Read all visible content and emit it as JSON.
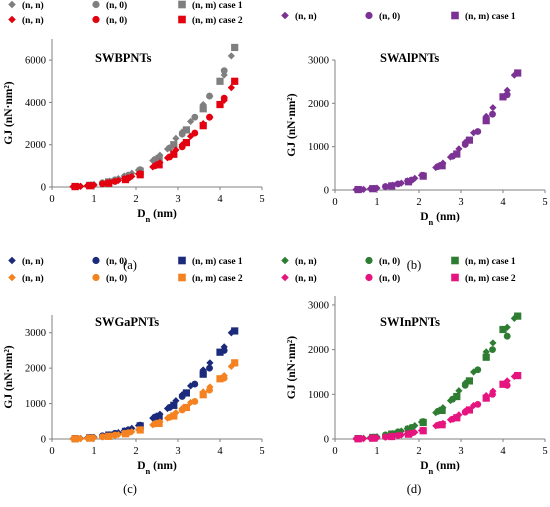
{
  "colors": {
    "gray_light": "#7f7f7f",
    "gray_dark": "#7f7f7f",
    "red": "#e3000f",
    "purple": "#7b3294",
    "navy": "#1b2a7a",
    "orange": "#f58220",
    "green": "#2e7d32",
    "magenta": "#e6147e"
  },
  "chart_data": [
    {
      "type": "scatter",
      "panel": "(a)",
      "title": "SWBPNTs",
      "xlabel_main": "D",
      "xlabel_sub": "n",
      "xlabel_unit": " (nm)",
      "ylabel": "GJ (nN·nm²)",
      "xlim": [
        0,
        5
      ],
      "ylim": [
        0,
        7000
      ],
      "xticks": [
        "0",
        "1",
        "2",
        "3",
        "4",
        "5"
      ],
      "yticks": [
        "0",
        "2000",
        "4000",
        "6000"
      ],
      "grid": false,
      "legend_position": "top",
      "series": [
        {
          "name": "(n, n)",
          "marker": "diamond",
          "color": "#7f7f7f",
          "x": [
            0.5,
            0.68,
            0.84,
            1.0,
            1.2,
            1.37,
            1.58,
            1.72,
            1.9,
            2.06,
            2.4,
            2.57,
            2.75,
            2.95,
            3.1,
            3.3,
            3.6,
            3.76,
            4.1,
            4.27
          ],
          "y": [
            20,
            40,
            70,
            120,
            200,
            280,
            400,
            520,
            650,
            800,
            1250,
            1500,
            1800,
            2300,
            2600,
            3100,
            3900,
            4300,
            5300,
            6200
          ]
        },
        {
          "name": "(n, 0)",
          "marker": "circle",
          "color": "#7f7f7f",
          "x": [
            0.6,
            0.92,
            1.2,
            1.5,
            1.82,
            2.1,
            2.45,
            2.8,
            3.1,
            3.4,
            3.75,
            4.1
          ],
          "y": [
            30,
            90,
            200,
            340,
            560,
            820,
            1300,
            1850,
            2500,
            3300,
            4300,
            5500
          ]
        },
        {
          "name": "(n, m) case 1",
          "marker": "square",
          "color": "#7f7f7f",
          "x": [
            0.55,
            0.9,
            1.35,
            1.75,
            2.1,
            2.55,
            2.9,
            3.2,
            3.6,
            4.0,
            4.35
          ],
          "y": [
            25,
            80,
            240,
            450,
            750,
            1350,
            2000,
            2700,
            3700,
            5000,
            6600
          ]
        },
        {
          "name": "(n, n)",
          "marker": "diamond",
          "color": "#e3000f",
          "x": [
            0.5,
            0.68,
            0.84,
            1.0,
            1.2,
            1.37,
            1.58,
            1.72,
            1.9,
            2.06,
            2.4,
            2.57,
            2.75,
            2.95,
            3.1,
            3.3,
            3.6,
            3.76,
            4.1,
            4.27
          ],
          "y": [
            15,
            30,
            55,
            90,
            150,
            210,
            310,
            400,
            500,
            620,
            950,
            1150,
            1380,
            1750,
            2000,
            2400,
            3000,
            3300,
            4100,
            4700
          ]
        },
        {
          "name": "(n, 0)",
          "marker": "circle",
          "color": "#e3000f",
          "x": [
            0.6,
            0.92,
            1.2,
            1.5,
            1.82,
            2.1,
            2.45,
            2.8,
            3.1,
            3.4,
            3.75,
            4.1
          ],
          "y": [
            25,
            70,
            150,
            260,
            430,
            630,
            1000,
            1420,
            1900,
            2550,
            3300,
            4200
          ]
        },
        {
          "name": "(n, m) case 2",
          "marker": "square",
          "color": "#e3000f",
          "x": [
            0.55,
            0.9,
            1.35,
            1.75,
            2.1,
            2.55,
            2.9,
            3.2,
            3.6,
            4.0,
            4.35
          ],
          "y": [
            20,
            60,
            180,
            350,
            580,
            1050,
            1550,
            2100,
            2900,
            3900,
            5000
          ]
        }
      ]
    },
    {
      "type": "scatter",
      "panel": "(b)",
      "title": "SWAlPNTs",
      "xlabel_main": "D",
      "xlabel_sub": "n",
      "xlabel_unit": " (nm)",
      "ylabel": "GJ (nN·nm²)",
      "xlim": [
        0,
        5
      ],
      "ylim": [
        0,
        3000
      ],
      "xticks": [
        "0",
        "1",
        "2",
        "3",
        "4",
        "5"
      ],
      "yticks": [
        "0",
        "1000",
        "2000",
        "3000"
      ],
      "grid": false,
      "legend_position": "top",
      "series": [
        {
          "name": "(n, n)",
          "marker": "diamond",
          "color": "#7b3294",
          "x": [
            0.5,
            0.68,
            0.84,
            1.0,
            1.2,
            1.37,
            1.58,
            1.72,
            1.9,
            2.06,
            2.4,
            2.57,
            2.75,
            2.95,
            3.1,
            3.3,
            3.6,
            3.76,
            4.1,
            4.27
          ],
          "y": [
            8,
            15,
            28,
            45,
            75,
            110,
            160,
            210,
            270,
            340,
            520,
            620,
            760,
            950,
            1100,
            1320,
            1700,
            1900,
            2300,
            2650
          ]
        },
        {
          "name": "(n, 0)",
          "marker": "circle",
          "color": "#7b3294",
          "x": [
            0.6,
            0.92,
            1.2,
            1.5,
            1.82,
            2.1,
            2.45,
            2.8,
            3.1,
            3.4,
            3.75,
            4.1
          ],
          "y": [
            10,
            35,
            80,
            140,
            230,
            340,
            540,
            780,
            1050,
            1350,
            1750,
            2200
          ]
        },
        {
          "name": "(n, m) case 1",
          "marker": "square",
          "color": "#7b3294",
          "x": [
            0.55,
            0.9,
            1.35,
            1.75,
            2.1,
            2.55,
            2.9,
            3.2,
            3.6,
            4.0,
            4.35
          ],
          "y": [
            10,
            30,
            95,
            190,
            320,
            560,
            830,
            1150,
            1600,
            2150,
            2700
          ]
        }
      ]
    },
    {
      "type": "scatter",
      "panel": "(c)",
      "title": "SWGaPNTs",
      "xlabel_main": "D",
      "xlabel_sub": "n",
      "xlabel_unit": " (nm)",
      "ylabel": "GJ (nN·nm²)",
      "xlim": [
        0,
        5
      ],
      "ylim": [
        0,
        3500
      ],
      "xticks": [
        "0",
        "1",
        "2",
        "3",
        "4",
        "5"
      ],
      "yticks": [
        "0",
        "1000",
        "2000",
        "3000"
      ],
      "grid": false,
      "legend_position": "top",
      "series": [
        {
          "name": "(n, n)",
          "marker": "diamond",
          "color": "#1b2a7a",
          "x": [
            0.5,
            0.68,
            0.84,
            1.0,
            1.2,
            1.37,
            1.58,
            1.72,
            1.9,
            2.06,
            2.4,
            2.57,
            2.75,
            2.95,
            3.1,
            3.3,
            3.6,
            3.76,
            4.1,
            4.27
          ],
          "y": [
            8,
            16,
            30,
            50,
            85,
            120,
            180,
            235,
            300,
            380,
            590,
            700,
            860,
            1080,
            1250,
            1500,
            1950,
            2150,
            2600,
            3000
          ]
        },
        {
          "name": "(n, 0)",
          "marker": "circle",
          "color": "#1b2a7a",
          "x": [
            0.6,
            0.92,
            1.2,
            1.5,
            1.82,
            2.1,
            2.45,
            2.8,
            3.1,
            3.4,
            3.75,
            4.1
          ],
          "y": [
            12,
            40,
            90,
            160,
            260,
            390,
            620,
            890,
            1200,
            1550,
            2000,
            2500
          ]
        },
        {
          "name": "(n, m) case 1",
          "marker": "square",
          "color": "#1b2a7a",
          "x": [
            0.55,
            0.9,
            1.35,
            1.75,
            2.1,
            2.55,
            2.9,
            3.2,
            3.6,
            4.0,
            4.35
          ],
          "y": [
            10,
            35,
            110,
            215,
            370,
            640,
            950,
            1300,
            1830,
            2450,
            3050
          ]
        },
        {
          "name": "(n, n)",
          "marker": "diamond",
          "color": "#f58220",
          "x": [
            0.5,
            0.68,
            0.84,
            1.0,
            1.2,
            1.37,
            1.58,
            1.72,
            1.9,
            2.06,
            2.4,
            2.57,
            2.75,
            2.95,
            3.1,
            3.3,
            3.6,
            3.76,
            4.1,
            4.27
          ],
          "y": [
            5,
            11,
            20,
            35,
            58,
            82,
            125,
            160,
            205,
            260,
            400,
            480,
            590,
            740,
            860,
            1030,
            1330,
            1470,
            1790,
            2050
          ]
        },
        {
          "name": "(n, 0)",
          "marker": "circle",
          "color": "#f58220",
          "x": [
            0.6,
            0.92,
            1.2,
            1.5,
            1.82,
            2.1,
            2.45,
            2.8,
            3.1,
            3.4,
            3.75,
            4.1
          ],
          "y": [
            8,
            28,
            62,
            110,
            180,
            265,
            425,
            610,
            820,
            1060,
            1380,
            1720
          ]
        },
        {
          "name": "(n, m) case 2",
          "marker": "square",
          "color": "#f58220",
          "x": [
            0.55,
            0.9,
            1.35,
            1.75,
            2.1,
            2.55,
            2.9,
            3.2,
            3.6,
            4.0,
            4.35
          ],
          "y": [
            7,
            24,
            75,
            148,
            255,
            440,
            650,
            890,
            1250,
            1700,
            2150
          ]
        }
      ]
    },
    {
      "type": "scatter",
      "panel": "(d)",
      "title": "SWInPNTs",
      "xlabel_main": "D",
      "xlabel_sub": "n",
      "xlabel_unit": " (nm)",
      "ylabel": "GJ (nN·nm²)",
      "xlim": [
        0,
        5
      ],
      "ylim": [
        0,
        3200
      ],
      "xticks": [
        "0",
        "1",
        "2",
        "3",
        "4",
        "5"
      ],
      "yticks": [
        "0",
        "1000",
        "2000",
        "3000"
      ],
      "grid": false,
      "legend_position": "top",
      "series": [
        {
          "name": "(n, n)",
          "marker": "diamond",
          "color": "#2e7d32",
          "x": [
            0.5,
            0.68,
            0.84,
            1.0,
            1.2,
            1.37,
            1.58,
            1.72,
            1.9,
            2.06,
            2.4,
            2.57,
            2.75,
            2.95,
            3.1,
            3.3,
            3.6,
            3.76,
            4.1,
            4.27
          ],
          "y": [
            8,
            16,
            30,
            50,
            85,
            120,
            180,
            235,
            300,
            380,
            590,
            700,
            860,
            1080,
            1250,
            1500,
            1950,
            2150,
            2500,
            2700
          ]
        },
        {
          "name": "(n, 0)",
          "marker": "circle",
          "color": "#2e7d32",
          "x": [
            0.6,
            0.92,
            1.2,
            1.5,
            1.82,
            2.1,
            2.45,
            2.8,
            3.1,
            3.4,
            3.75,
            4.1
          ],
          "y": [
            12,
            40,
            90,
            160,
            260,
            390,
            620,
            890,
            1200,
            1550,
            2000,
            2300
          ]
        },
        {
          "name": "(n, m) case 1",
          "marker": "square",
          "color": "#2e7d32",
          "x": [
            0.55,
            0.9,
            1.35,
            1.75,
            2.1,
            2.55,
            2.9,
            3.2,
            3.6,
            4.0,
            4.35
          ],
          "y": [
            10,
            35,
            110,
            215,
            370,
            640,
            950,
            1300,
            1830,
            2450,
            2750
          ]
        },
        {
          "name": "(n, n)",
          "marker": "diamond",
          "color": "#e6147e",
          "x": [
            0.5,
            0.68,
            0.84,
            1.0,
            1.2,
            1.37,
            1.58,
            1.72,
            1.9,
            2.06,
            2.4,
            2.57,
            2.75,
            2.95,
            3.1,
            3.3,
            3.6,
            3.76,
            4.1,
            4.27
          ],
          "y": [
            4,
            8,
            15,
            25,
            42,
            60,
            90,
            118,
            150,
            190,
            295,
            350,
            430,
            540,
            625,
            750,
            970,
            1070,
            1300,
            1400
          ]
        },
        {
          "name": "(n, 0)",
          "marker": "circle",
          "color": "#e6147e",
          "x": [
            0.6,
            0.92,
            1.2,
            1.5,
            1.82,
            2.1,
            2.45,
            2.8,
            3.1,
            3.4,
            3.75,
            4.1
          ],
          "y": [
            6,
            20,
            45,
            80,
            130,
            195,
            310,
            445,
            600,
            775,
            1000,
            1200
          ]
        },
        {
          "name": "(n, m) case 2",
          "marker": "square",
          "color": "#e6147e",
          "x": [
            0.55,
            0.9,
            1.35,
            1.75,
            2.1,
            2.55,
            2.9,
            3.2,
            3.6,
            4.0,
            4.35
          ],
          "y": [
            5,
            18,
            55,
            108,
            185,
            320,
            475,
            650,
            915,
            1225,
            1420
          ]
        }
      ]
    }
  ]
}
